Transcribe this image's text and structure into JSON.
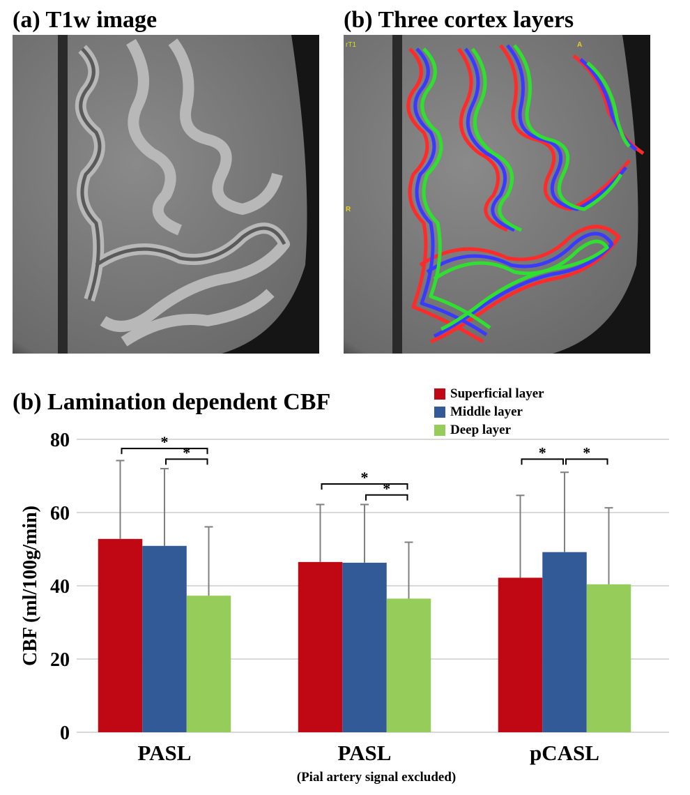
{
  "panels": {
    "a_title": "(a) T1w image",
    "b_title": "(b) Three cortex layers",
    "b_overlay_labels": {
      "top_left": "rT1",
      "top_right": "A",
      "left": "R"
    },
    "layer_colors": {
      "superficial": "#ff2a2a",
      "middle": "#3a3aff",
      "deep": "#30e030"
    }
  },
  "chart_data": {
    "type": "bar",
    "title": "(b) Lamination dependent CBF",
    "ylabel": "CBF (ml/100g/min)",
    "xlabel": "",
    "x_sublabel": "(Pial artery signal excluded)",
    "categories": [
      "PASL",
      "PASL",
      "pCASL"
    ],
    "ylim": [
      0,
      80
    ],
    "yticks": [
      0,
      20,
      40,
      60,
      80
    ],
    "grid": true,
    "legend_position": "top-right",
    "series": [
      {
        "name": "Superficial layer",
        "color": "#c00814",
        "values": [
          52.8,
          46.5,
          42.2
        ],
        "error_upper": [
          74.2,
          62.2,
          64.7
        ]
      },
      {
        "name": "Middle layer",
        "color": "#325a96",
        "values": [
          50.9,
          46.3,
          49.2
        ],
        "error_upper": [
          72.0,
          62.2,
          71.0
        ]
      },
      {
        "name": "Deep layer",
        "color": "#96cd5a",
        "values": [
          37.3,
          36.5,
          40.4
        ],
        "error_upper": [
          56.1,
          51.9,
          61.3
        ]
      }
    ],
    "significance": [
      {
        "category": 0,
        "from": 0,
        "to": 2,
        "level": 77.5,
        "label": "*"
      },
      {
        "category": 0,
        "from": 1,
        "to": 2,
        "level": 74.6,
        "label": "*"
      },
      {
        "category": 1,
        "from": 0,
        "to": 2,
        "level": 67.8,
        "label": "*"
      },
      {
        "category": 1,
        "from": 1,
        "to": 2,
        "level": 64.8,
        "label": "*"
      },
      {
        "category": 2,
        "from": 0,
        "to": 1,
        "level": 74.6,
        "label": "*"
      },
      {
        "category": 2,
        "from": 1,
        "to": 2,
        "level": 74.6,
        "label": "*"
      }
    ]
  }
}
